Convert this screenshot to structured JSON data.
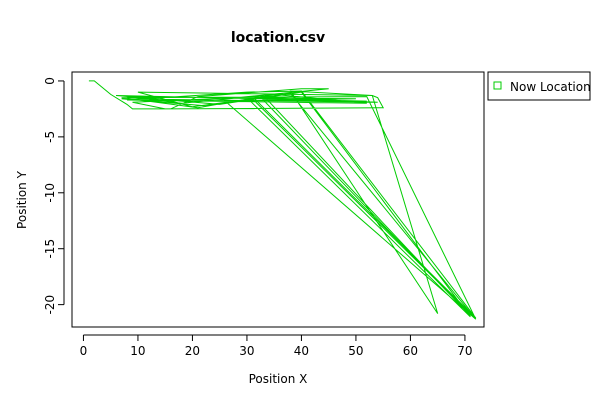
{
  "chart_data": {
    "type": "line",
    "title": "location.csv",
    "xlabel": "Position X",
    "ylabel": "Position Y",
    "xlim": [
      -2.1,
      73.5
    ],
    "ylim": [
      -22.0,
      0.8
    ],
    "x_ticks": [
      0,
      10,
      20,
      30,
      40,
      50,
      60,
      70
    ],
    "y_ticks": [
      0,
      -5,
      -10,
      -15,
      -20
    ],
    "grid": false,
    "legend_position": "outside-right",
    "series": [
      {
        "name": "Now Location",
        "color": "#00cc00",
        "marker": "open-square",
        "x": [
          1,
          2,
          5,
          8,
          9,
          16,
          21,
          40,
          45,
          28,
          9,
          15,
          55,
          54,
          53,
          38,
          65,
          53,
          10,
          20,
          31,
          72,
          52,
          7,
          21,
          35,
          52,
          8,
          30,
          40,
          72,
          31,
          54,
          7,
          22,
          38,
          72,
          26,
          50,
          8,
          18,
          33,
          71,
          33,
          52,
          6,
          25,
          40,
          71,
          30
        ],
        "y": [
          0,
          0,
          -1.2,
          -2.1,
          -2.5,
          -2.5,
          -1.4,
          -0.7,
          -0.7,
          -1.5,
          -1.9,
          -2.5,
          -2.4,
          -1.5,
          -1.3,
          -0.9,
          -20.8,
          -1.3,
          -1.0,
          -2.3,
          -1.6,
          -21.3,
          -1.4,
          -1.5,
          -2.4,
          -1.2,
          -2.0,
          -1.7,
          -1.0,
          -0.9,
          -21.2,
          -1.4,
          -1.9,
          -1.6,
          -2.2,
          -1.1,
          -21.3,
          -1.8,
          -1.6,
          -1.4,
          -2.0,
          -1.3,
          -21.0,
          -1.7,
          -1.8,
          -1.3,
          -2.1,
          -1.0,
          -21.1,
          -1.5
        ]
      }
    ]
  }
}
